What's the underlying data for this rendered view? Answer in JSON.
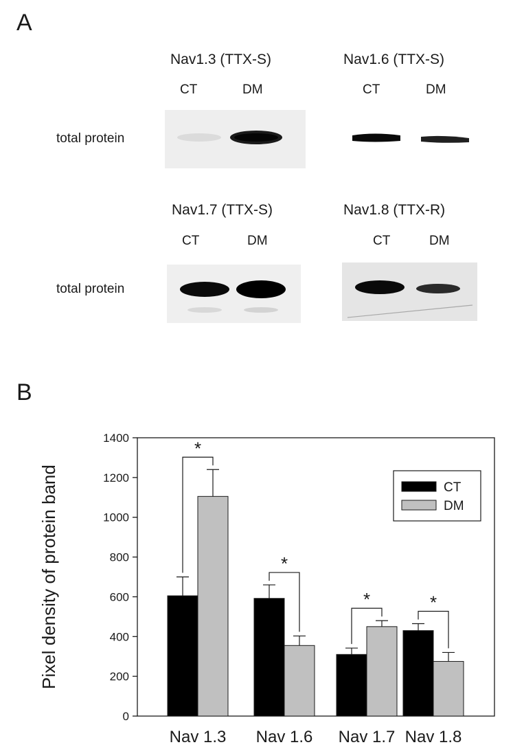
{
  "panel_a": {
    "letter": "A",
    "blots": [
      {
        "title": "Nav1.3 (TTX-S)",
        "lanes": [
          "CT",
          "DM"
        ],
        "row_label": "total protein",
        "band_intensity": [
          0.1,
          0.95
        ]
      },
      {
        "title": "Nav1.6 (TTX-S)",
        "lanes": [
          "CT",
          "DM"
        ],
        "row_label": "",
        "band_intensity": [
          0.9,
          0.75
        ]
      },
      {
        "title": "Nav1.7 (TTX-S)",
        "lanes": [
          "CT",
          "DM"
        ],
        "row_label": "total protein",
        "band_intensity": [
          0.95,
          1.0
        ]
      },
      {
        "title": "Nav1.8 (TTX-R)",
        "lanes": [
          "CT",
          "DM"
        ],
        "row_label": "",
        "band_intensity": [
          0.9,
          0.65
        ]
      }
    ]
  },
  "panel_b": {
    "letter": "B"
  },
  "chart_data": {
    "type": "bar",
    "title": "",
    "xlabel": "",
    "ylabel": "Pixel density of protein band",
    "ylim": [
      0,
      1400
    ],
    "yticks": [
      0,
      200,
      400,
      600,
      800,
      1000,
      1200,
      1400
    ],
    "categories": [
      "Nav 1.3",
      "Nav 1.6",
      "Nav 1.7",
      "Nav 1.8"
    ],
    "series": [
      {
        "name": "CT",
        "values": [
          605,
          592,
          310,
          430
        ],
        "errors": [
          95,
          68,
          32,
          35
        ],
        "color": "#000000"
      },
      {
        "name": "DM",
        "values": [
          1105,
          355,
          450,
          275
        ],
        "errors": [
          135,
          48,
          30,
          45
        ],
        "color": "#c0c0c0"
      }
    ],
    "significance": [
      "*",
      "*",
      "*",
      "*"
    ],
    "legend_position": "top-right",
    "grid": false
  }
}
